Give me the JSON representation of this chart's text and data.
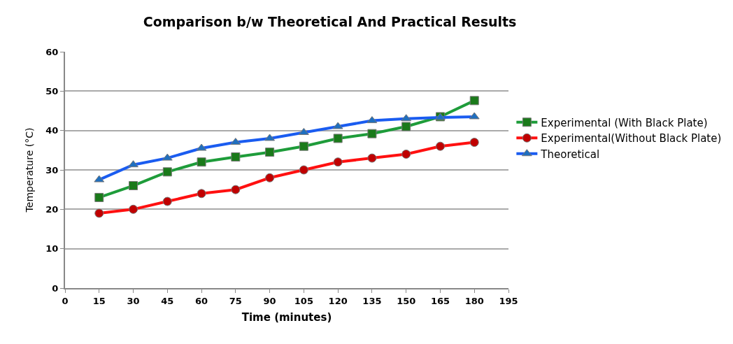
{
  "chart_data": {
    "type": "line",
    "title": "Comparison b/w Theoretical And Practical Results",
    "xlabel": "Time (minutes)",
    "ylabel": "Temperature (°C)",
    "x": [
      15,
      30,
      45,
      60,
      75,
      90,
      105,
      120,
      135,
      150,
      165,
      180
    ],
    "series": [
      {
        "name": "Experimental (With Black Plate)",
        "color": "#1e9c3a",
        "marker": "square",
        "values": [
          23,
          26,
          29.5,
          32,
          33.3,
          34.5,
          36,
          38,
          39.2,
          41,
          43.5,
          47.6
        ]
      },
      {
        "name": "Experimental(Without Black Plate)",
        "color": "#ff1010",
        "marker": "circle",
        "values": [
          19,
          20,
          22,
          24,
          25,
          28,
          30,
          32,
          33,
          34,
          36,
          37
        ]
      },
      {
        "name": "Theoretical",
        "color": "#1a5cf0",
        "marker": "triangle",
        "values": [
          27.5,
          31.3,
          33,
          35.5,
          37,
          38,
          39.5,
          41,
          42.5,
          43,
          43.3,
          43.5
        ]
      }
    ],
    "xlim": [
      0,
      195
    ],
    "xticks": [
      0,
      15,
      30,
      45,
      60,
      75,
      90,
      105,
      120,
      135,
      150,
      165,
      180,
      195
    ],
    "ylim": [
      0,
      60
    ],
    "yticks": [
      0,
      10,
      20,
      30,
      40,
      50,
      60
    ],
    "grid": "y",
    "legend": "right",
    "line_style": "solid"
  }
}
